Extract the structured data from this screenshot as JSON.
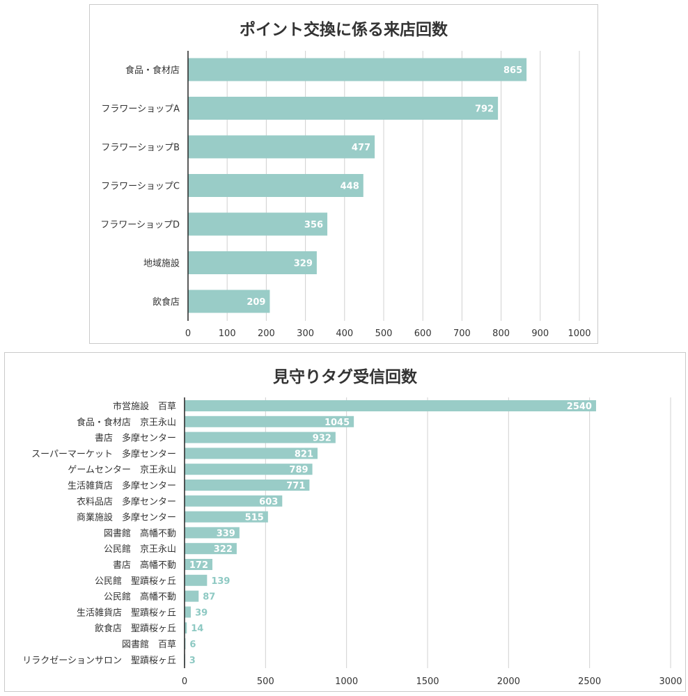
{
  "colors": {
    "bar": "#99ccc7",
    "label_inside": "#ffffff",
    "label_outside": "#8ec9c3"
  },
  "chart_data": [
    {
      "type": "bar",
      "orientation": "horizontal",
      "title": "ポイント交換に係る来店回数",
      "categories": [
        "食品・食材店",
        "フラワーショップA",
        "フラワーショップB",
        "フラワーショップC",
        "フラワーショップD",
        "地域施設",
        "飲食店"
      ],
      "values": [
        865,
        792,
        477,
        448,
        356,
        329,
        209
      ],
      "xlim": [
        0,
        1000
      ],
      "xticks": [
        0,
        100,
        200,
        300,
        400,
        500,
        600,
        700,
        800,
        900,
        1000
      ],
      "grid": true,
      "data_labels": true
    },
    {
      "type": "bar",
      "orientation": "horizontal",
      "title": "見守りタグ受信回数",
      "categories": [
        "市営施設　百草",
        "食品・食材店　京王永山",
        "書店　多摩センター",
        "スーパーマーケット　多摩センター",
        "ゲームセンター　京王永山",
        "生活雑貨店　多摩センター",
        "衣料品店　多摩センター",
        "商業施設　多摩センター",
        "図書館　高幡不動",
        "公民館　京王永山",
        "書店　高幡不動",
        "公民館　聖蹟桜ヶ丘",
        "公民館　高幡不動",
        "生活雑貨店　聖蹟桜ヶ丘",
        "飲食店　聖蹟桜ヶ丘",
        "図書館　百草",
        "リラクゼーションサロン　聖蹟桜ヶ丘"
      ],
      "values": [
        2540,
        1045,
        932,
        821,
        789,
        771,
        603,
        515,
        339,
        322,
        172,
        139,
        87,
        39,
        14,
        6,
        3
      ],
      "xlim": [
        0,
        3000
      ],
      "xticks": [
        0,
        500,
        1000,
        1500,
        2000,
        2500,
        3000
      ],
      "grid": true,
      "data_labels": true
    }
  ]
}
